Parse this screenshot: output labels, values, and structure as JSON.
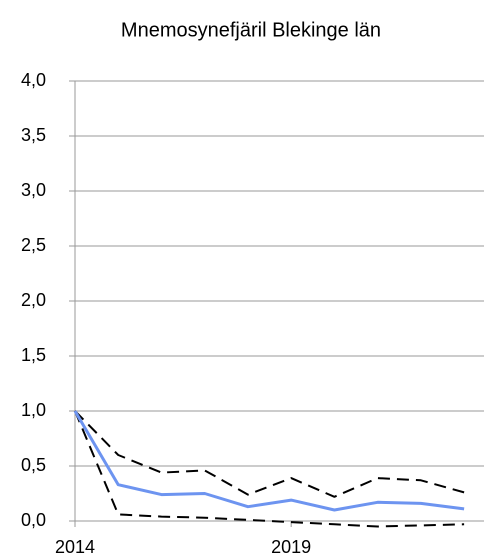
{
  "chart_data": {
    "type": "line",
    "title": "Mnemosynefjäril Blekinge län",
    "x": [
      2014,
      2015,
      2016,
      2017,
      2018,
      2019,
      2020,
      2021,
      2022,
      2023
    ],
    "series": [
      {
        "color": "#000000",
        "dashed": true,
        "values": [
          1.0,
          0.6,
          0.44,
          0.46,
          0.24,
          0.39,
          0.22,
          0.39,
          0.37,
          0.26
        ]
      },
      {
        "color": "#000000",
        "dashed": true,
        "values": [
          1.0,
          0.06,
          0.04,
          0.03,
          0.01,
          -0.01,
          -0.03,
          -0.05,
          -0.04,
          -0.03
        ]
      },
      {
        "color": "#6d94f0",
        "dashed": false,
        "values": [
          1.0,
          0.33,
          0.24,
          0.25,
          0.13,
          0.19,
          0.1,
          0.17,
          0.16,
          0.11
        ]
      }
    ],
    "xlim": [
      2014,
      2023.46
    ],
    "xticks": [
      2014,
      2019
    ],
    "ylim": [
      0,
      4
    ],
    "yticks": [
      {
        "value": 0,
        "label": "0,0"
      },
      {
        "value": 0.5,
        "label": "0,5"
      },
      {
        "value": 1,
        "label": "1,0"
      },
      {
        "value": 1.5,
        "label": "1,5"
      },
      {
        "value": 2,
        "label": "2,0"
      },
      {
        "value": 2.5,
        "label": "2,5"
      },
      {
        "value": 3,
        "label": "3,0"
      },
      {
        "value": 3.5,
        "label": "3,5"
      },
      {
        "value": 4,
        "label": "4,0"
      }
    ],
    "grid": true
  }
}
